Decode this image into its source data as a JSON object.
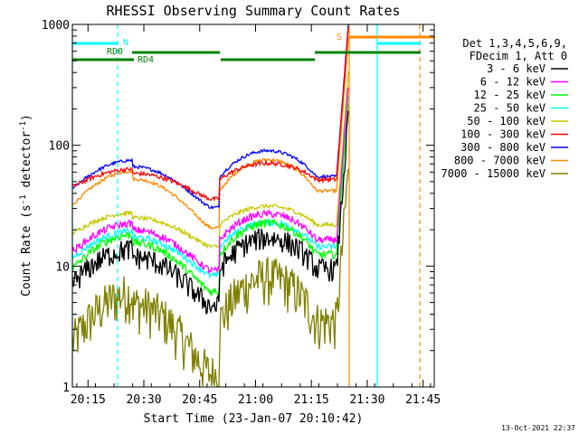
{
  "chart_data": {
    "type": "line",
    "title": "RHESSI Observing Summary Count Rates",
    "xlabel": "Start Time (23-Jan-07 20:10:42)",
    "ylabel_main": "Count Rate (s",
    "ylabel_sup1": "-1",
    "ylabel_mid": " detector",
    "ylabel_sup2": "-1",
    "ylabel_end": ")",
    "footer": "13-Oct-2021 22:37",
    "y_scale": "log",
    "xlim_minutes": [
      20.18,
      21.8
    ],
    "ylim": [
      1,
      1000
    ],
    "x_ticks": [
      {
        "label": "20:15",
        "t": 20.25
      },
      {
        "label": "20:30",
        "t": 20.5
      },
      {
        "label": "20:45",
        "t": 20.75
      },
      {
        "label": "21:00",
        "t": 21.0
      },
      {
        "label": "21:15",
        "t": 21.25
      },
      {
        "label": "21:30",
        "t": 21.5
      },
      {
        "label": "21:45",
        "t": 21.75
      }
    ],
    "y_ticks": [
      {
        "label": "1",
        "v": 1
      },
      {
        "label": "10",
        "v": 10
      },
      {
        "label": "100",
        "v": 100
      },
      {
        "label": "1000",
        "v": 1000
      }
    ],
    "legend_header": [
      "Det 1,3,4,5,6,9,",
      "FDecim 1, Att 0"
    ],
    "series": [
      {
        "name": "3 - 6 keV",
        "color": "#000000",
        "base": 9.5,
        "amp": 0.42,
        "noise": 0.22
      },
      {
        "name": "6 - 12 keV",
        "color": "#ff00ff",
        "base": 16.5,
        "amp": 0.35,
        "noise": 0.07
      },
      {
        "name": "12 - 25 keV",
        "color": "#00ff00",
        "base": 12.5,
        "amp": 0.42,
        "noise": 0.08
      },
      {
        "name": "25 - 50 keV",
        "color": "#00ffff",
        "base": 14.5,
        "amp": 0.33,
        "noise": 0.06
      },
      {
        "name": "50 - 100 keV",
        "color": "#c8c800",
        "base": 22,
        "amp": 0.25,
        "noise": 0.04
      },
      {
        "name": "100 - 300 keV",
        "color": "#ff0000",
        "base": 52,
        "amp": 0.22,
        "noise": 0.04
      },
      {
        "name": "300 - 800 keV",
        "color": "#0000ff",
        "base": 55,
        "amp": 0.35,
        "noise": 0.03
      },
      {
        "name": "800 - 7000 keV",
        "color": "#ff8800",
        "base": 42,
        "amp": 0.42,
        "noise": 0.03
      },
      {
        "name": "7000 - 15000 keV",
        "color": "#808000",
        "base": 3.5,
        "amp": 0.6,
        "noise": 0.45
      }
    ],
    "annotations": {
      "flags": [
        {
          "label": "N",
          "color": "#00ffff"
        },
        {
          "label": "RD0",
          "color": "#008000"
        },
        {
          "label": "RD4",
          "color": "#008000"
        },
        {
          "label": "S",
          "color": "#ff8800"
        }
      ]
    }
  }
}
